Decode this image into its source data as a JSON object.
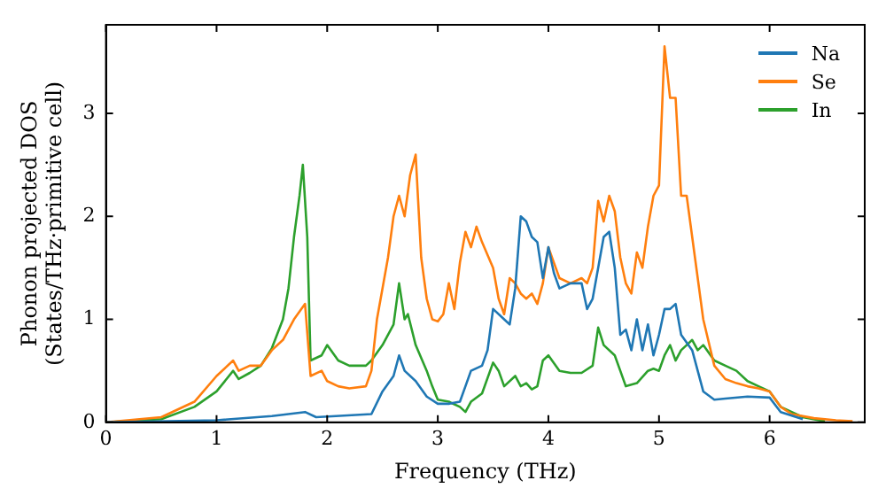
{
  "chart_data": {
    "type": "line",
    "xlabel": "Frequency (THz)",
    "ylabel": "Phonon projected DOS\n(States/THz·primitive cell)",
    "xlim": [
      0,
      6.86
    ],
    "ylim": [
      0,
      3.86
    ],
    "xticks": [
      0,
      1,
      2,
      3,
      4,
      5,
      6
    ],
    "yticks": [
      0,
      1,
      2,
      3
    ],
    "legend": "top right",
    "grid": false,
    "marker": "none",
    "line_style": "solid",
    "series": [
      {
        "name": "Na",
        "color": "#1f77b4",
        "x": [
          0,
          1.0,
          1.5,
          1.8,
          1.9,
          2.4,
          2.5,
          2.6,
          2.65,
          2.7,
          2.8,
          2.9,
          3.0,
          3.1,
          3.2,
          3.25,
          3.3,
          3.4,
          3.45,
          3.5,
          3.6,
          3.65,
          3.7,
          3.75,
          3.8,
          3.85,
          3.9,
          3.95,
          4.0,
          4.05,
          4.1,
          4.2,
          4.3,
          4.35,
          4.4,
          4.45,
          4.5,
          4.55,
          4.6,
          4.65,
          4.7,
          4.75,
          4.8,
          4.85,
          4.9,
          4.95,
          5.0,
          5.05,
          5.1,
          5.15,
          5.2,
          5.3,
          5.4,
          5.5,
          5.6,
          5.8,
          6.0,
          6.1,
          6.3
        ],
        "values": [
          0,
          0.02,
          0.06,
          0.1,
          0.05,
          0.08,
          0.3,
          0.45,
          0.65,
          0.5,
          0.4,
          0.25,
          0.18,
          0.18,
          0.2,
          0.35,
          0.5,
          0.55,
          0.7,
          1.1,
          1.0,
          0.95,
          1.3,
          2.0,
          1.95,
          1.8,
          1.75,
          1.4,
          1.7,
          1.45,
          1.3,
          1.35,
          1.35,
          1.1,
          1.2,
          1.5,
          1.8,
          1.85,
          1.5,
          0.85,
          0.9,
          0.7,
          1.0,
          0.7,
          0.95,
          0.65,
          0.85,
          1.1,
          1.1,
          1.15,
          0.85,
          0.7,
          0.3,
          0.22,
          0.23,
          0.25,
          0.24,
          0.1,
          0.03
        ]
      },
      {
        "name": "Se",
        "color": "#ff7f0e",
        "x": [
          0,
          0.5,
          0.8,
          1.0,
          1.15,
          1.2,
          1.3,
          1.4,
          1.5,
          1.6,
          1.7,
          1.8,
          1.85,
          1.95,
          2.0,
          2.1,
          2.2,
          2.35,
          2.4,
          2.45,
          2.5,
          2.55,
          2.6,
          2.65,
          2.7,
          2.75,
          2.8,
          2.85,
          2.9,
          2.95,
          3.0,
          3.05,
          3.1,
          3.15,
          3.2,
          3.25,
          3.3,
          3.35,
          3.4,
          3.5,
          3.55,
          3.6,
          3.65,
          3.7,
          3.75,
          3.8,
          3.85,
          3.9,
          3.95,
          4.0,
          4.05,
          4.1,
          4.2,
          4.3,
          4.35,
          4.4,
          4.45,
          4.5,
          4.55,
          4.6,
          4.65,
          4.7,
          4.75,
          4.8,
          4.85,
          4.9,
          4.95,
          5.0,
          5.05,
          5.1,
          5.15,
          5.2,
          5.25,
          5.3,
          5.4,
          5.5,
          5.6,
          5.7,
          5.8,
          5.9,
          6.0,
          6.1,
          6.2,
          6.4,
          6.6,
          6.75
        ],
        "values": [
          0,
          0.05,
          0.2,
          0.45,
          0.6,
          0.5,
          0.55,
          0.55,
          0.7,
          0.8,
          1.0,
          1.15,
          0.45,
          0.5,
          0.4,
          0.35,
          0.33,
          0.35,
          0.5,
          1.0,
          1.3,
          1.6,
          2.0,
          2.2,
          2.0,
          2.4,
          2.6,
          1.6,
          1.2,
          1.0,
          0.98,
          1.05,
          1.35,
          1.1,
          1.55,
          1.85,
          1.7,
          1.9,
          1.75,
          1.5,
          1.2,
          1.05,
          1.4,
          1.35,
          1.25,
          1.2,
          1.25,
          1.15,
          1.35,
          1.7,
          1.55,
          1.4,
          1.35,
          1.4,
          1.35,
          1.5,
          2.15,
          1.95,
          2.2,
          2.05,
          1.6,
          1.35,
          1.25,
          1.65,
          1.5,
          1.9,
          2.2,
          2.3,
          3.65,
          3.15,
          3.15,
          2.2,
          2.2,
          1.8,
          1.0,
          0.55,
          0.42,
          0.38,
          0.35,
          0.33,
          0.3,
          0.15,
          0.08,
          0.04,
          0.02,
          0.01
        ]
      },
      {
        "name": "In",
        "color": "#2ca02c",
        "x": [
          0,
          0.5,
          0.8,
          1.0,
          1.15,
          1.2,
          1.3,
          1.4,
          1.5,
          1.6,
          1.65,
          1.7,
          1.75,
          1.78,
          1.82,
          1.85,
          1.95,
          2.0,
          2.1,
          2.2,
          2.35,
          2.4,
          2.5,
          2.6,
          2.65,
          2.7,
          2.73,
          2.8,
          2.9,
          2.95,
          3.0,
          3.1,
          3.2,
          3.25,
          3.3,
          3.4,
          3.5,
          3.55,
          3.6,
          3.7,
          3.75,
          3.8,
          3.85,
          3.9,
          3.95,
          4.0,
          4.1,
          4.2,
          4.3,
          4.4,
          4.45,
          4.5,
          4.6,
          4.65,
          4.7,
          4.8,
          4.9,
          4.95,
          5.0,
          5.05,
          5.1,
          5.15,
          5.2,
          5.25,
          5.3,
          5.35,
          5.4,
          5.5,
          5.6,
          5.7,
          5.8,
          5.9,
          6.0,
          6.1,
          6.3,
          6.5
        ],
        "values": [
          0,
          0.03,
          0.15,
          0.3,
          0.5,
          0.42,
          0.48,
          0.55,
          0.72,
          1.0,
          1.3,
          1.8,
          2.2,
          2.5,
          1.8,
          0.6,
          0.65,
          0.75,
          0.6,
          0.55,
          0.55,
          0.6,
          0.75,
          0.95,
          1.35,
          1.0,
          1.05,
          0.75,
          0.5,
          0.35,
          0.22,
          0.2,
          0.15,
          0.1,
          0.2,
          0.28,
          0.58,
          0.5,
          0.35,
          0.45,
          0.35,
          0.38,
          0.32,
          0.35,
          0.6,
          0.65,
          0.5,
          0.48,
          0.48,
          0.55,
          0.92,
          0.75,
          0.65,
          0.5,
          0.35,
          0.38,
          0.5,
          0.52,
          0.5,
          0.65,
          0.75,
          0.6,
          0.7,
          0.75,
          0.8,
          0.7,
          0.75,
          0.6,
          0.55,
          0.5,
          0.4,
          0.35,
          0.3,
          0.15,
          0.05,
          0.01
        ]
      }
    ]
  }
}
